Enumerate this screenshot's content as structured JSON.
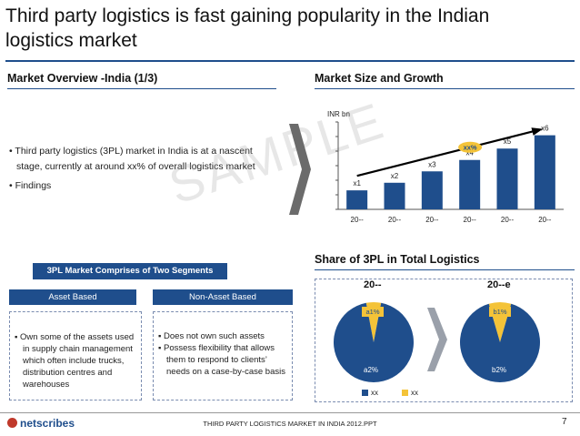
{
  "title": "Third party logistics is fast gaining popularity in the Indian logistics market",
  "market_overview": {
    "heading": "Market Overview -India (1/3)",
    "bullets": [
      "Third party logistics (3PL) market in India is at a nascent stage, currently at around xx% of overall logistics market",
      "Findings"
    ]
  },
  "watermark": "SAMPLE",
  "segments": {
    "banner": "3PL Market Comprises of Two Segments",
    "asset": {
      "label": "Asset Based",
      "bullets": [
        "Own some of the assets used in supply chain management which often include trucks, distribution centres and warehouses"
      ]
    },
    "non_asset": {
      "label": "Non-Asset Based",
      "bullets": [
        "Does not own such assets",
        "Possess flexibility that allows them to respond to clients’ needs on a case-by-case basis"
      ]
    }
  },
  "market_size": {
    "heading": "Market Size and Growth",
    "unit": "INR bn",
    "cagr_label": "xx%"
  },
  "chart_data": [
    {
      "type": "bar",
      "title": "Market Size and Growth",
      "ylabel": "INR bn",
      "categories": [
        "20--",
        "20--",
        "20--",
        "20--",
        "20--",
        "20--"
      ],
      "values": [
        1,
        1.4,
        2,
        2.6,
        3.2,
        3.9
      ],
      "data_labels": [
        "x1",
        "x2",
        "x3",
        "x4",
        "x5",
        "x6"
      ],
      "annotation": "xx%",
      "grid": false,
      "ylim": [
        0,
        4.6
      ],
      "color": "#1f4e8c"
    },
    {
      "type": "pie",
      "title": "20--",
      "slices": [
        {
          "label": "a1%",
          "value": 6,
          "color": "#f4c338"
        },
        {
          "label": "a2%",
          "value": 94,
          "color": "#1f4e8c"
        }
      ]
    },
    {
      "type": "pie",
      "title": "20--e",
      "slices": [
        {
          "label": "b1%",
          "value": 9,
          "color": "#f4c338"
        },
        {
          "label": "b2%",
          "value": 91,
          "color": "#1f4e8c"
        }
      ]
    }
  ],
  "share": {
    "heading": "Share of 3PL in Total Logistics",
    "pie1_title": "20--",
    "pie2_title": "20--e",
    "pie1_small": "a1%",
    "pie1_large": "a2%",
    "pie2_small": "b1%",
    "pie2_large": "b2%",
    "legend": [
      {
        "label": "xx",
        "color": "#1f4e8c"
      },
      {
        "label": "xx",
        "color": "#f4c338"
      }
    ]
  },
  "footer": {
    "logo": "netscribes",
    "text": "THIRD PARTY LOGISTICS MARKET IN INDIA 2012.PPT",
    "page": "7"
  }
}
